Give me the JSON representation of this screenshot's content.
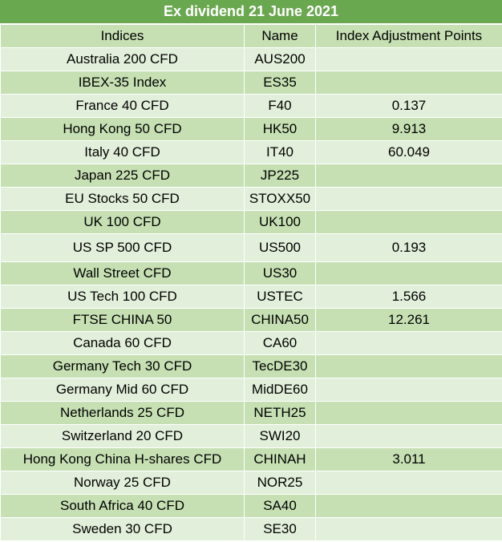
{
  "title": "Ex dividend 21 June 2021",
  "headers": {
    "indices": "Indices",
    "name": "Name",
    "points": "Index Adjustment Points"
  },
  "rows": [
    {
      "index": "Australia 200 CFD",
      "name": "AUS200",
      "points": ""
    },
    {
      "index": "IBEX-35 Index",
      "name": "ES35",
      "points": ""
    },
    {
      "index": "France 40 CFD",
      "name": "F40",
      "points": "0.137"
    },
    {
      "index": "Hong Kong 50 CFD",
      "name": "HK50",
      "points": "9.913"
    },
    {
      "index": "Italy 40 CFD",
      "name": "IT40",
      "points": "60.049"
    },
    {
      "index": "Japan 225 CFD",
      "name": "JP225",
      "points": ""
    },
    {
      "index": "EU Stocks 50 CFD",
      "name": "STOXX50",
      "points": ""
    },
    {
      "index": "UK 100 CFD",
      "name": "UK100",
      "points": ""
    },
    {
      "index": "US SP 500 CFD",
      "name": "US500",
      "points": "0.193"
    },
    {
      "index": "Wall Street CFD",
      "name": "US30",
      "points": ""
    },
    {
      "index": "US Tech 100 CFD",
      "name": "USTEC",
      "points": "1.566"
    },
    {
      "index": "FTSE CHINA 50",
      "name": "CHINA50",
      "points": "12.261"
    },
    {
      "index": "Canada 60 CFD",
      "name": "CA60",
      "points": ""
    },
    {
      "index": "Germany Tech 30 CFD",
      "name": "TecDE30",
      "points": ""
    },
    {
      "index": "Germany Mid 60 CFD",
      "name": "MidDE60",
      "points": ""
    },
    {
      "index": "Netherlands 25 CFD",
      "name": "NETH25",
      "points": ""
    },
    {
      "index": "Switzerland 20 CFD",
      "name": "SWI20",
      "points": ""
    },
    {
      "index": "Hong Kong China H-shares CFD",
      "name": "CHINAH",
      "points": "3.011"
    },
    {
      "index": "Norway 25 CFD",
      "name": "NOR25",
      "points": ""
    },
    {
      "index": "South Africa 40 CFD",
      "name": "SA40",
      "points": ""
    },
    {
      "index": "Sweden 30 CFD",
      "name": "SE30",
      "points": ""
    }
  ],
  "colors": {
    "title_bg": "#6aa84f",
    "row_light": "#e2efda",
    "row_dark": "#c6e0b4"
  }
}
